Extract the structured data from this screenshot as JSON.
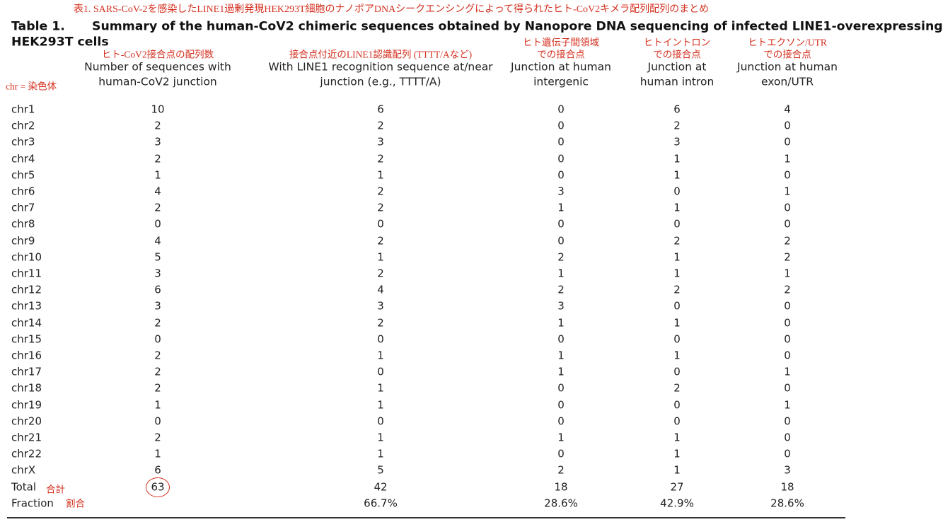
{
  "translation": "表1. SARS-CoV-2を感染したLINE1過剰発現HEK293T細胞のナノポアDNAシークエンシングによって得られたヒト-CoV2キメラ配列配列のまとめ",
  "title": {
    "label": "Table 1.",
    "lines": [
      "Summary of the human-CoV2 chimeric sequences obtained by Nanopore DNA sequencing of infected LINE1-overexpressing",
      "HEK293T cells"
    ]
  },
  "chr_note": "chr = 染色体",
  "table": {
    "columns": [
      {
        "annotation": [
          "ヒト-CoV2接合点の配列数"
        ],
        "header": [
          "Number of sequences with",
          "human-CoV2 junction"
        ]
      },
      {
        "annotation": [
          "接合点付近のLINE1認識配列 (TTTT/Aなど)"
        ],
        "header": [
          "With LINE1 recognition sequence at/near",
          "junction (e.g., TTTT/A)"
        ]
      },
      {
        "annotation": [
          "ヒト遺伝子間領域",
          "での接合点"
        ],
        "header": [
          "Junction at human",
          "intergenic"
        ]
      },
      {
        "annotation": [
          "ヒトイントロン",
          "での接合点"
        ],
        "header": [
          "Junction at",
          "human intron"
        ]
      },
      {
        "annotation": [
          "ヒトエクソン/UTR",
          "での接合点"
        ],
        "header": [
          "Junction at human",
          "exon/UTR"
        ]
      }
    ],
    "rows": [
      [
        "chr1",
        10,
        6,
        0,
        6,
        4
      ],
      [
        "chr2",
        2,
        2,
        0,
        2,
        0
      ],
      [
        "chr3",
        3,
        3,
        0,
        3,
        0
      ],
      [
        "chr4",
        2,
        2,
        0,
        1,
        1
      ],
      [
        "chr5",
        1,
        1,
        0,
        1,
        0
      ],
      [
        "chr6",
        4,
        2,
        3,
        0,
        1
      ],
      [
        "chr7",
        2,
        2,
        1,
        1,
        0
      ],
      [
        "chr8",
        0,
        0,
        0,
        0,
        0
      ],
      [
        "chr9",
        4,
        2,
        0,
        2,
        2
      ],
      [
        "chr10",
        5,
        1,
        2,
        1,
        2
      ],
      [
        "chr11",
        3,
        2,
        1,
        1,
        1
      ],
      [
        "chr12",
        6,
        4,
        2,
        2,
        2
      ],
      [
        "chr13",
        3,
        3,
        3,
        0,
        0
      ],
      [
        "chr14",
        2,
        2,
        1,
        1,
        0
      ],
      [
        "chr15",
        0,
        0,
        0,
        0,
        0
      ],
      [
        "chr16",
        2,
        1,
        1,
        1,
        0
      ],
      [
        "chr17",
        2,
        0,
        1,
        0,
        1
      ],
      [
        "chr18",
        2,
        1,
        0,
        2,
        0
      ],
      [
        "chr19",
        1,
        1,
        0,
        0,
        1
      ],
      [
        "chr20",
        0,
        0,
        0,
        0,
        0
      ],
      [
        "chr21",
        2,
        1,
        1,
        1,
        0
      ],
      [
        "chr22",
        1,
        1,
        0,
        1,
        0
      ],
      [
        "chrX",
        6,
        5,
        2,
        1,
        3
      ]
    ],
    "total": {
      "label": "Total",
      "annotation": "合計",
      "values": [
        63,
        42,
        18,
        27,
        18
      ]
    },
    "fraction": {
      "label": "Fraction",
      "annotation": "割合",
      "values": [
        "66.7%",
        "28.6%",
        "42.9%",
        "28.6%"
      ]
    }
  }
}
